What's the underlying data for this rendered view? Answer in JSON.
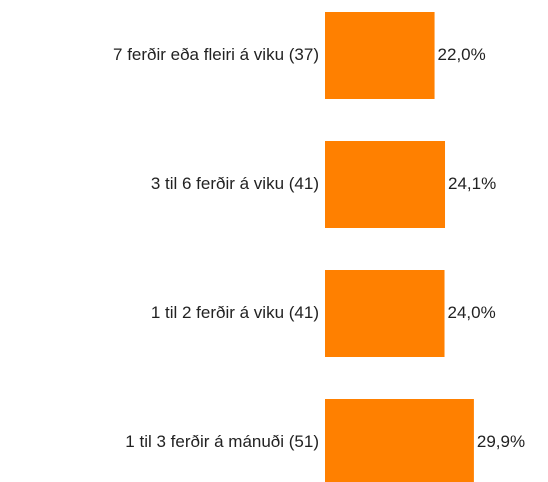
{
  "chart_data": {
    "type": "bar",
    "orientation": "horizontal",
    "categories": [
      "7 ferðir eða fleiri á viku (37)",
      "3 til 6 ferðir á viku (41)",
      "1 til 2 ferðir á viku (41)",
      "1 til 3 ferðir á mánuði (51)"
    ],
    "values": [
      22.0,
      24.1,
      24.0,
      29.9
    ],
    "value_labels": [
      "22,0%",
      "24,1%",
      "24,0%",
      "29,9%"
    ],
    "color": "#ff8000"
  }
}
